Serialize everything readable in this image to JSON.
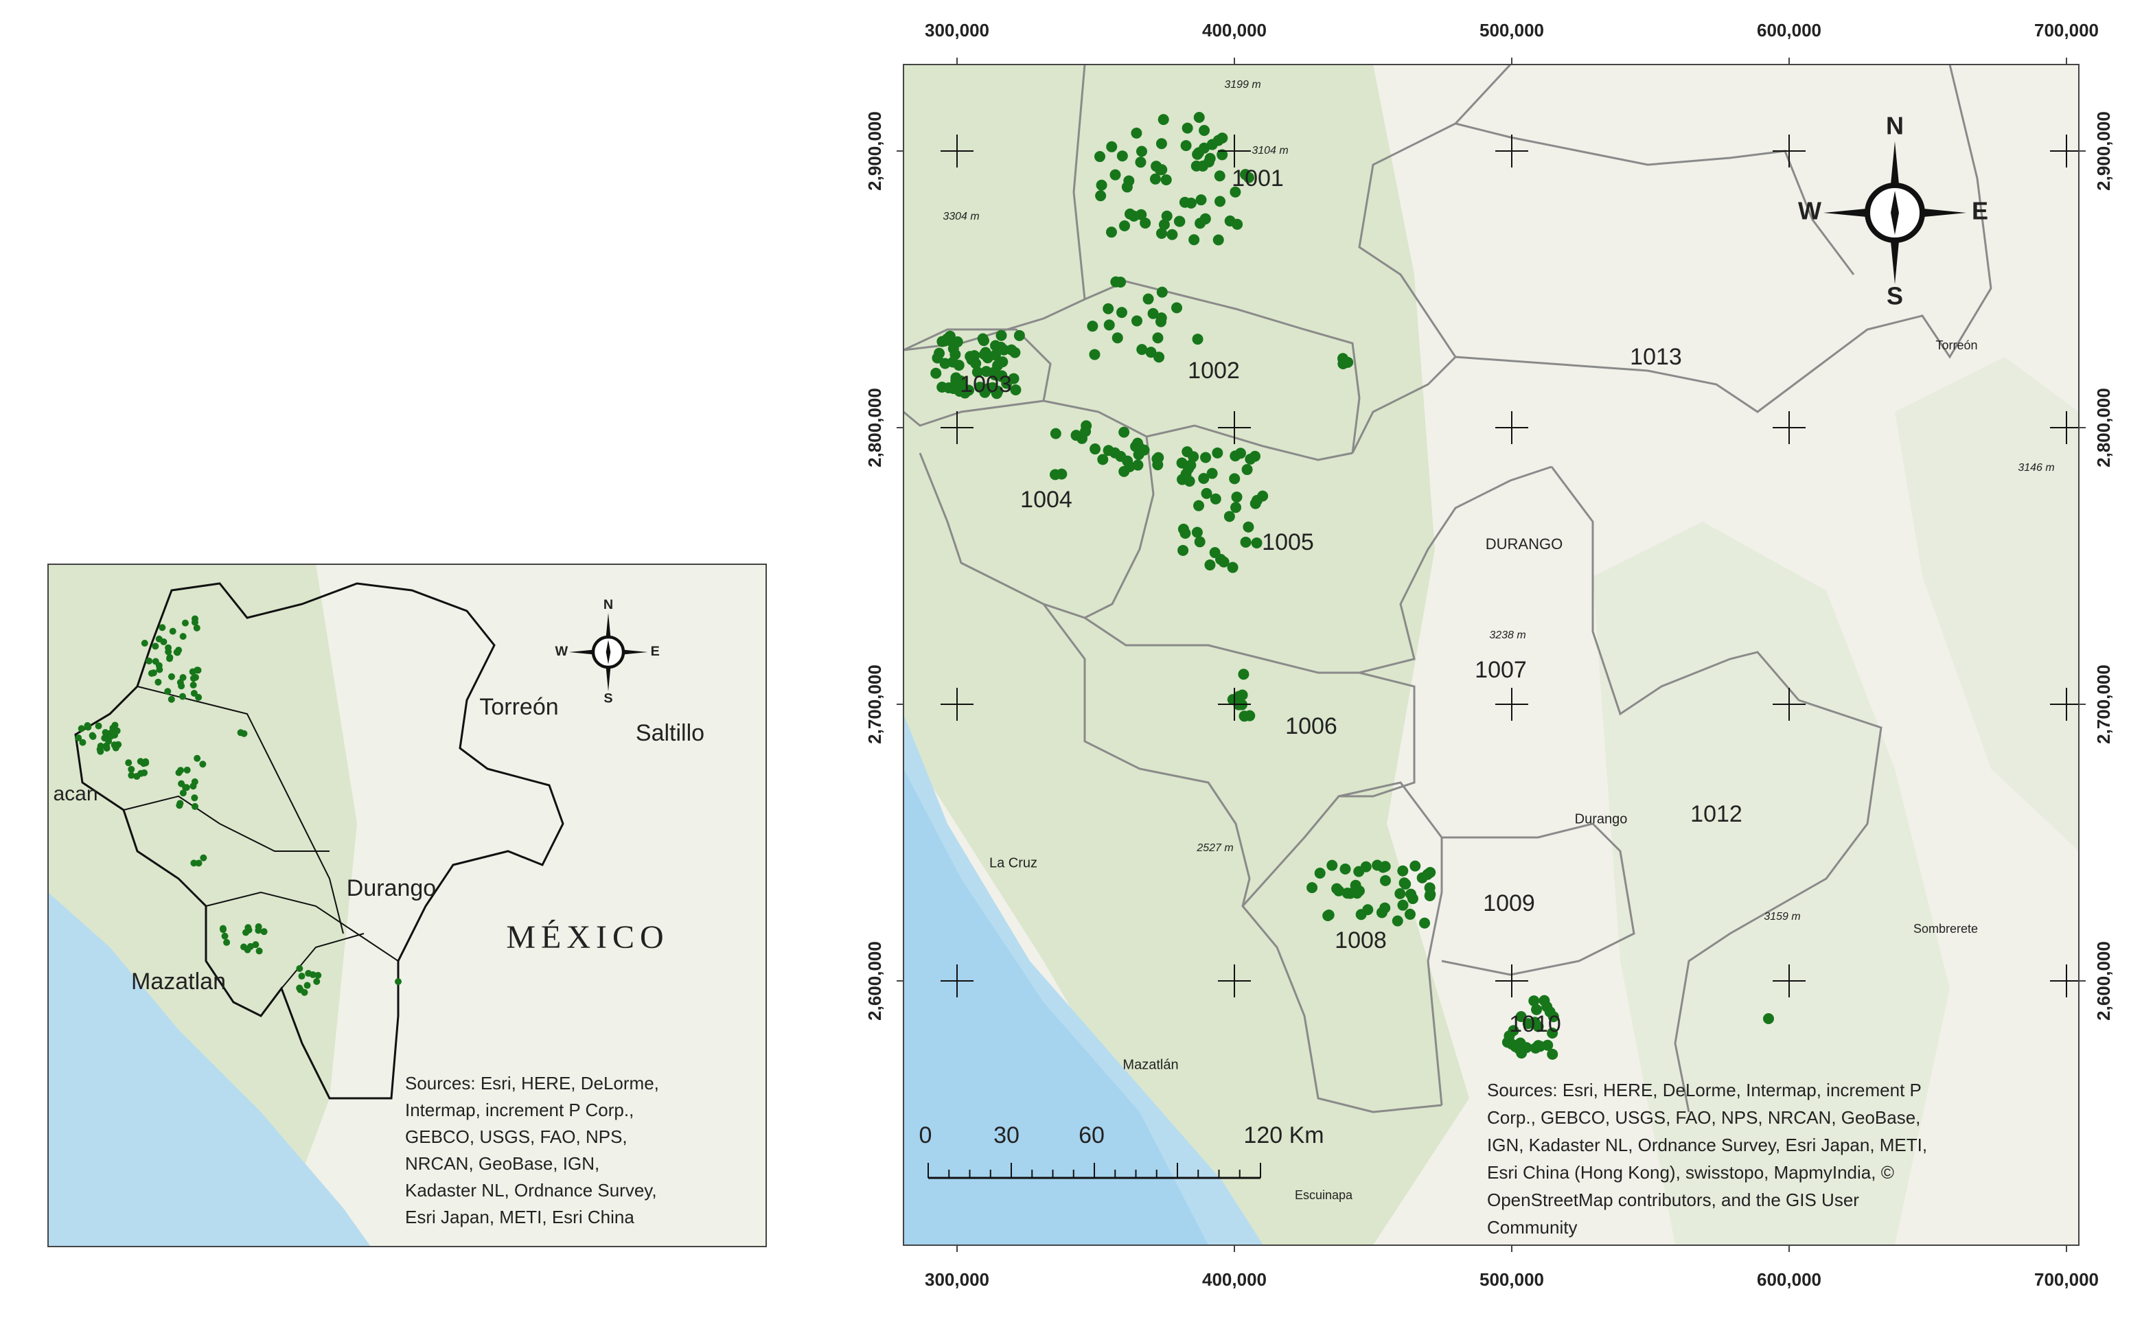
{
  "main_map": {
    "x_tick_labels": [
      "300,000",
      "400,000",
      "500,000",
      "600,000",
      "700,000"
    ],
    "y_tick_labels": [
      "2,900,000",
      "2,800,000",
      "2,700,000",
      "2,600,000"
    ],
    "regions": [
      "1001",
      "1002",
      "1003",
      "1004",
      "1005",
      "1006",
      "1007",
      "1008",
      "1009",
      "1010",
      "1012",
      "1013"
    ],
    "places": [
      "DURANGO",
      "Durango",
      "La Cruz",
      "Mazatlán",
      "Escuinapa",
      "Torreón",
      "Sombrerete"
    ],
    "elevations": [
      "3199 m",
      "3104 m",
      "3304 m",
      "3238 m",
      "2527 m",
      "3146 m",
      "3159 m"
    ],
    "compass": {
      "north": "N",
      "south": "S",
      "east": "E",
      "west": "W"
    },
    "scale_bar": [
      "0",
      "30",
      "60",
      "120 Km"
    ],
    "sources": [
      "Sources: Esri, HERE, DeLorme, Intermap, increment P",
      "Corp., GEBCO, USGS, FAO, NPS, NRCAN, GeoBase,",
      "IGN, Kadaster NL, Ordnance Survey, Esri Japan, METI,",
      "Esri China (Hong Kong), swisstopo, MapmyIndia, ©",
      "OpenStreetMap contributors, and the GIS User",
      "Community"
    ]
  },
  "inset_map": {
    "places": [
      "Torreón",
      "Saltillo",
      "Durango",
      "MÉXICO",
      "Mazatlan",
      "acan"
    ],
    "compass": {
      "north": "N",
      "south": "S",
      "east": "E",
      "west": "W"
    },
    "sources": [
      "Sources: Esri, HERE, DeLorme,",
      "Intermap, increment P Corp.,",
      "GEBCO, USGS, FAO, NPS,",
      "NRCAN, GeoBase, IGN,",
      "Kadaster NL, Ordnance Survey,",
      "Esri Japan, METI, Esri China"
    ]
  }
}
